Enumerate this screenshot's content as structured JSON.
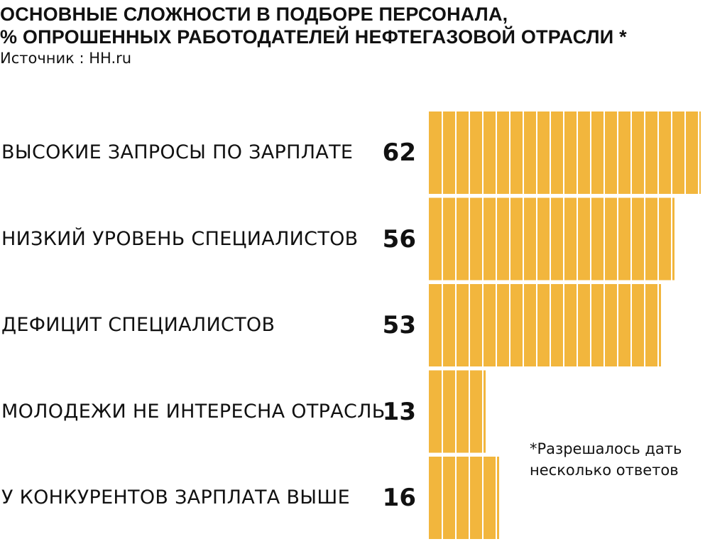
{
  "header": {
    "title_line1": "ОСНОВНЫЕ СЛОЖНОСТИ В ПОДБОРЕ ПЕРСОНАЛА,",
    "title_line2": "% ОПРОШЕННЫХ РАБОТОДАТЕЛЕЙ НЕФТЕГАЗОВОЙ ОТРАСЛИ *",
    "source": "Источник : HH.ru"
  },
  "note": {
    "line1": "*Разрешалось дать",
    "line2": "несколько ответов"
  },
  "colors": {
    "bar": "#f2b63d",
    "segment_divider": "#ffffff"
  },
  "chart_data": {
    "type": "bar",
    "orientation": "horizontal",
    "title": "ОСНОВНЫЕ СЛОЖНОСТИ В ПОДБОРЕ ПЕРСОНАЛА, % ОПРОШЕННЫХ РАБОТОДАТЕЛЕЙ НЕФТЕГАЗОВОЙ ОТРАСЛИ *",
    "categories": [
      "ВЫСОКИЕ ЗАПРОСЫ ПО ЗАРПЛАТЕ",
      "НИЗКИЙ УРОВЕНЬ СПЕЦИАЛИСТОВ",
      "ДЕФИЦИТ СПЕЦИАЛИСТОВ",
      "МОЛОДЕЖИ НЕ ИНТЕРЕСНА ОТРАСЛЬ",
      "У КОНКУРЕНТОВ ЗАРПЛАТА ВЫШЕ"
    ],
    "values": [
      62,
      56,
      53,
      13,
      16
    ],
    "data_labels": [
      "62",
      "56",
      "53",
      "13",
      "16"
    ],
    "xlim": [
      0,
      62
    ],
    "grid": false,
    "legend": false
  }
}
